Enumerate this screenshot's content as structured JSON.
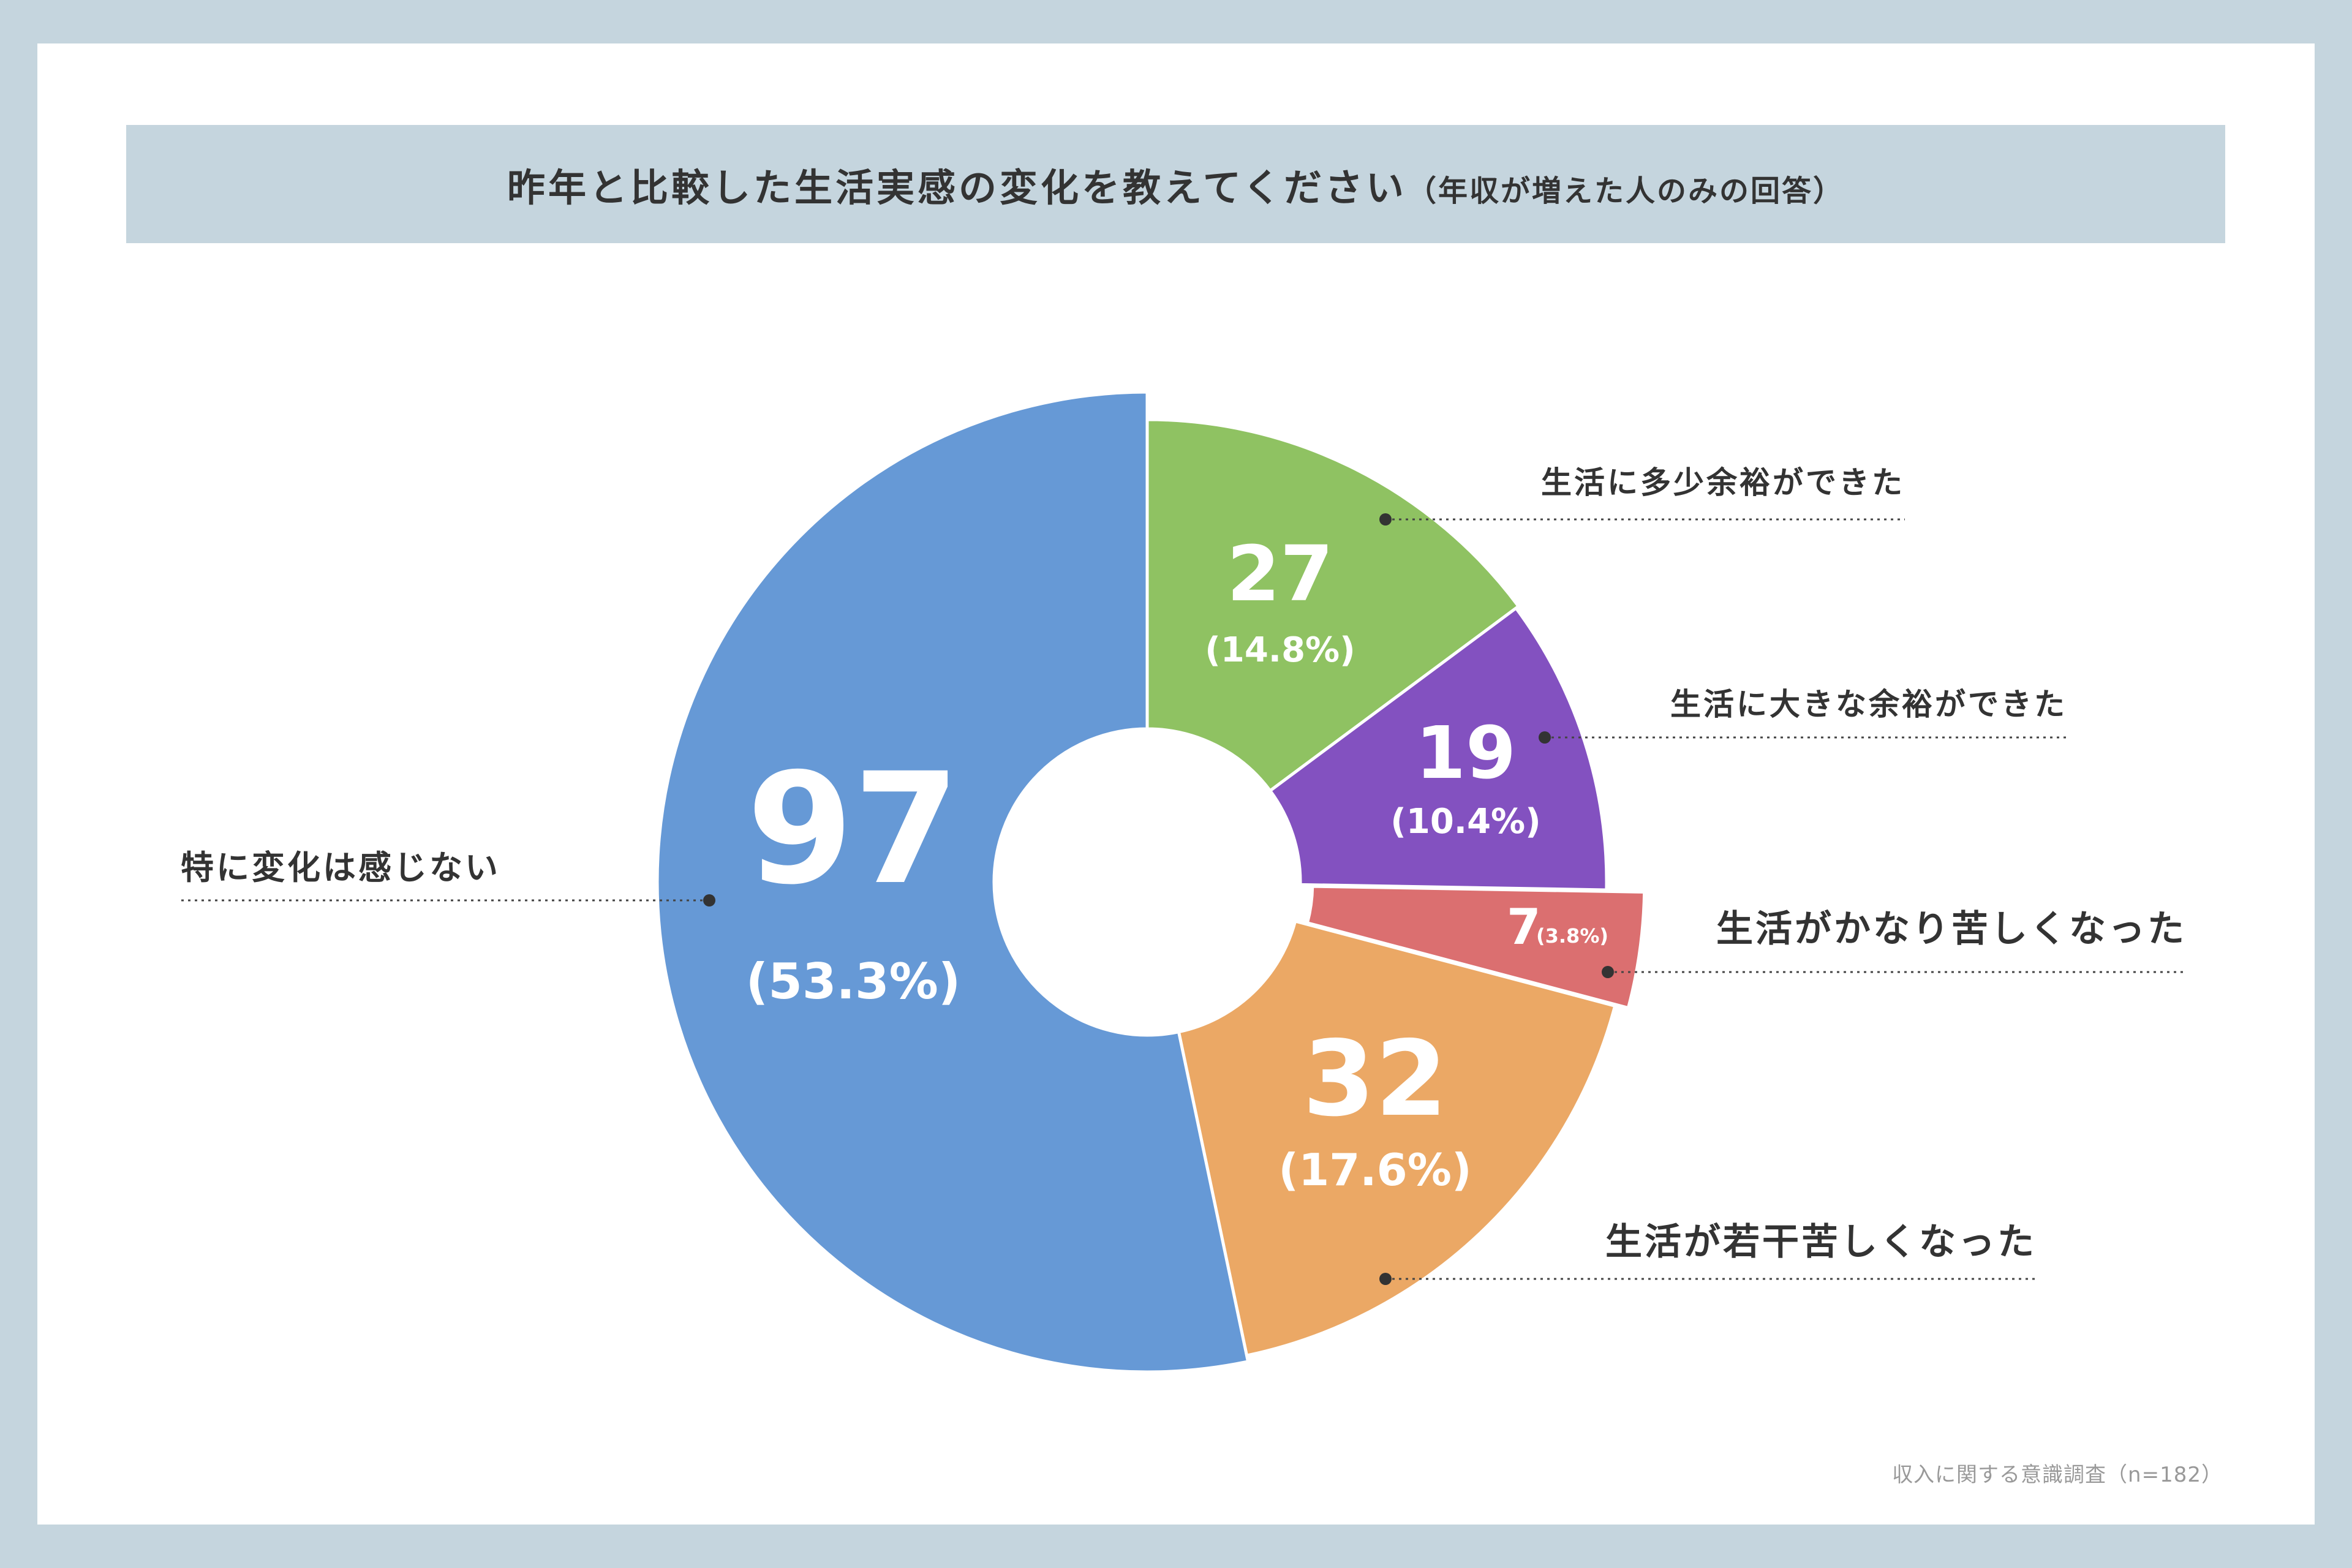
{
  "title": {
    "main": "昨年と比較した生活実感の変化を教えてください",
    "sub": "（年収が増えた人のみの回答）"
  },
  "source": "収入に関する意識調査（n=182）",
  "chart_data": {
    "type": "pie",
    "donut": true,
    "categories": [
      "特に変化は感じない",
      "生活に多少余裕ができた",
      "生活に大きな余裕ができた",
      "生活がかなり苦しくなった",
      "生活が若干苦しくなった"
    ],
    "values": [
      97,
      27,
      19,
      7,
      32
    ],
    "percent_labels": [
      "(53.3%)",
      "(14.8%)",
      "(10.4%)",
      "(3.8%)",
      "(17.6%)"
    ],
    "colors": [
      "#6699d6",
      "#8fc262",
      "#8351c0",
      "#db6f70",
      "#eba865"
    ],
    "total": 182
  }
}
